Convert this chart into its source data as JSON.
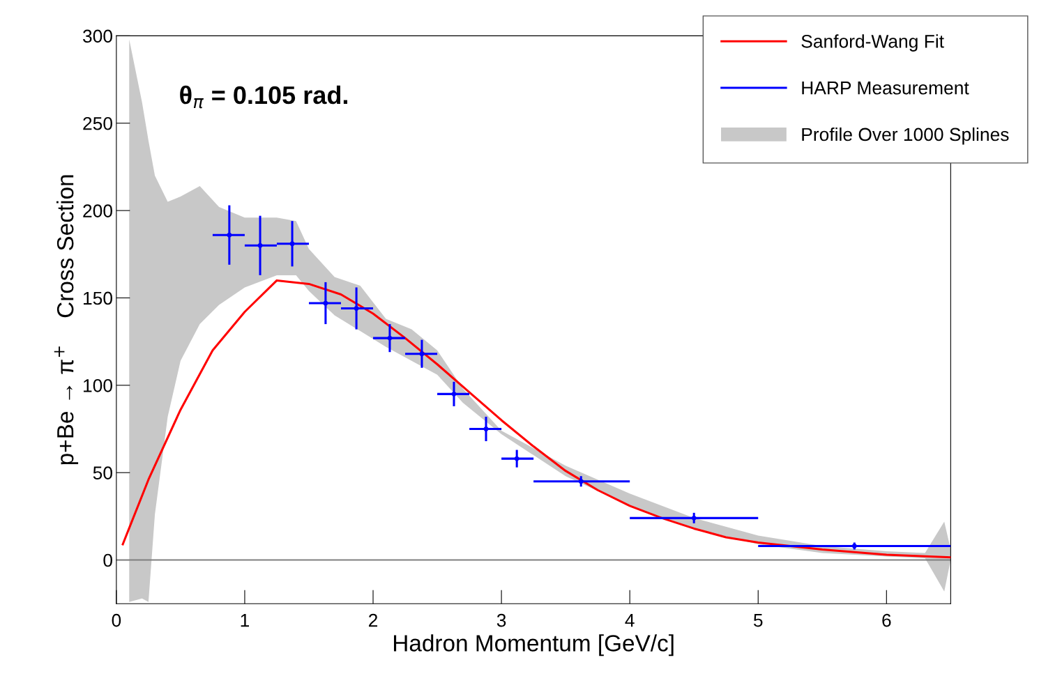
{
  "chart_data": {
    "type": "scatter",
    "xlabel": "Hadron Momentum [GeV/c]",
    "ylabel": "p+Be → π$^{+}$    Cross Section",
    "annotations": [
      "θ$_{π}$ = 0.105 rad."
    ],
    "xlim": [
      0,
      6.5
    ],
    "ylim": [
      -25,
      300
    ],
    "xticks": [
      0,
      1,
      2,
      3,
      4,
      5,
      6
    ],
    "yticks": [
      0,
      50,
      100,
      150,
      200,
      250,
      300
    ],
    "grid": false,
    "legend": "top right",
    "marker": "circle",
    "ref_lines": [
      {
        "axis": "y",
        "value": 0,
        "color": "#7f7f7f"
      }
    ],
    "series": [
      {
        "name": "Sanford-Wang Fit",
        "type": "line",
        "marker": "none",
        "color": "#ff0000",
        "x": [
          0.05,
          0.25,
          0.5,
          0.75,
          1.0,
          1.25,
          1.5,
          1.75,
          2.0,
          2.25,
          2.5,
          2.75,
          3.0,
          3.25,
          3.5,
          3.75,
          4.0,
          4.25,
          4.5,
          4.75,
          5.0,
          5.5,
          6.0,
          6.5
        ],
        "values": [
          9,
          46,
          86,
          120,
          142,
          160,
          158,
          152,
          141,
          127,
          112,
          96,
          80,
          65,
          51,
          40,
          31,
          24,
          18,
          13,
          10,
          6,
          3,
          1.5
        ]
      },
      {
        "name": "HARP Measurement",
        "color": "#0000ff",
        "x": [
          0.88,
          1.12,
          1.37,
          1.63,
          1.87,
          2.13,
          2.38,
          2.63,
          2.88,
          3.12,
          3.62,
          4.5,
          5.75
        ],
        "values": [
          186,
          180,
          181,
          147,
          144,
          127,
          118,
          95,
          75,
          58,
          45,
          24,
          8
        ],
        "errors": [
          17,
          17,
          13,
          12,
          12,
          8,
          8,
          7,
          7,
          5,
          3,
          3,
          2
        ],
        "xerrors": [
          [
            0.75,
            1.0
          ],
          [
            1.0,
            1.25
          ],
          [
            1.25,
            1.5
          ],
          [
            1.5,
            1.75
          ],
          [
            1.75,
            2.0
          ],
          [
            2.0,
            2.25
          ],
          [
            2.25,
            2.5
          ],
          [
            2.5,
            2.75
          ],
          [
            2.75,
            3.0
          ],
          [
            3.0,
            3.25
          ],
          [
            3.25,
            4.0
          ],
          [
            4.0,
            5.0
          ],
          [
            5.0,
            6.5
          ]
        ]
      },
      {
        "name": "Profile Over 1000 Splines",
        "type": "line",
        "color": "#c8c8c8",
        "x": [
          0.1,
          0.2,
          0.25,
          0.3,
          0.4,
          0.5,
          0.65,
          0.8,
          1.0,
          1.25,
          1.4,
          1.5,
          1.7,
          1.9,
          2.1,
          2.3,
          2.5,
          2.7,
          3.0,
          3.5,
          4.0,
          4.5,
          5.0,
          5.5,
          6.0,
          6.3,
          6.45,
          6.5
        ],
        "values": [
          null,
          null,
          null,
          null,
          null,
          null,
          null,
          null,
          null,
          null,
          null,
          null,
          null,
          null,
          null,
          null,
          null,
          null,
          null,
          null,
          null,
          null,
          null,
          null,
          null,
          null,
          null,
          null
        ],
        "upper": [
          298,
          262,
          240,
          220,
          205,
          208,
          214,
          202,
          196,
          196,
          194,
          178,
          162,
          157,
          138,
          132,
          120,
          98,
          74,
          54,
          38,
          24,
          14,
          8,
          5,
          4,
          22,
          6
        ],
        "lower": [
          -24,
          -22,
          -24,
          26,
          82,
          114,
          135,
          146,
          156,
          163,
          163,
          154,
          140,
          131,
          122,
          114,
          106,
          90,
          72,
          48,
          31,
          18,
          9,
          4,
          2,
          1,
          -18,
          0
        ]
      }
    ]
  }
}
